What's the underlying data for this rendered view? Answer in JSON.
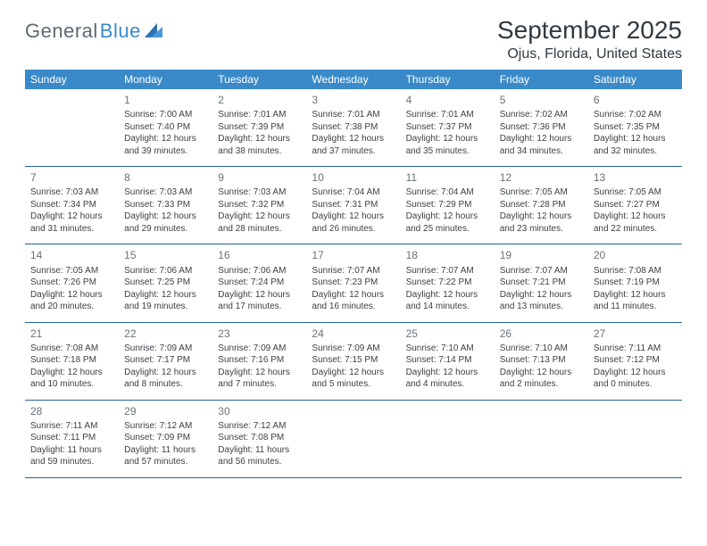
{
  "logo": {
    "text1": "General",
    "text2": "Blue"
  },
  "header": {
    "month_title": "September 2025",
    "location": "Ojus, Florida, United States"
  },
  "colors": {
    "header_bg": "#3a8ac9",
    "header_text": "#ffffff",
    "row_divider": "#2862a3",
    "daynum": "#6a7278",
    "body_text": "#3c4146",
    "title_text": "#303a40",
    "logo_gray": "#5f6a72",
    "logo_blue": "#3a8ac9"
  },
  "day_names": [
    "Sunday",
    "Monday",
    "Tuesday",
    "Wednesday",
    "Thursday",
    "Friday",
    "Saturday"
  ],
  "weeks": [
    [
      null,
      {
        "n": "1",
        "sr": "Sunrise: 7:00 AM",
        "ss": "Sunset: 7:40 PM",
        "d1": "Daylight: 12 hours",
        "d2": "and 39 minutes."
      },
      {
        "n": "2",
        "sr": "Sunrise: 7:01 AM",
        "ss": "Sunset: 7:39 PM",
        "d1": "Daylight: 12 hours",
        "d2": "and 38 minutes."
      },
      {
        "n": "3",
        "sr": "Sunrise: 7:01 AM",
        "ss": "Sunset: 7:38 PM",
        "d1": "Daylight: 12 hours",
        "d2": "and 37 minutes."
      },
      {
        "n": "4",
        "sr": "Sunrise: 7:01 AM",
        "ss": "Sunset: 7:37 PM",
        "d1": "Daylight: 12 hours",
        "d2": "and 35 minutes."
      },
      {
        "n": "5",
        "sr": "Sunrise: 7:02 AM",
        "ss": "Sunset: 7:36 PM",
        "d1": "Daylight: 12 hours",
        "d2": "and 34 minutes."
      },
      {
        "n": "6",
        "sr": "Sunrise: 7:02 AM",
        "ss": "Sunset: 7:35 PM",
        "d1": "Daylight: 12 hours",
        "d2": "and 32 minutes."
      }
    ],
    [
      {
        "n": "7",
        "sr": "Sunrise: 7:03 AM",
        "ss": "Sunset: 7:34 PM",
        "d1": "Daylight: 12 hours",
        "d2": "and 31 minutes."
      },
      {
        "n": "8",
        "sr": "Sunrise: 7:03 AM",
        "ss": "Sunset: 7:33 PM",
        "d1": "Daylight: 12 hours",
        "d2": "and 29 minutes."
      },
      {
        "n": "9",
        "sr": "Sunrise: 7:03 AM",
        "ss": "Sunset: 7:32 PM",
        "d1": "Daylight: 12 hours",
        "d2": "and 28 minutes."
      },
      {
        "n": "10",
        "sr": "Sunrise: 7:04 AM",
        "ss": "Sunset: 7:31 PM",
        "d1": "Daylight: 12 hours",
        "d2": "and 26 minutes."
      },
      {
        "n": "11",
        "sr": "Sunrise: 7:04 AM",
        "ss": "Sunset: 7:29 PM",
        "d1": "Daylight: 12 hours",
        "d2": "and 25 minutes."
      },
      {
        "n": "12",
        "sr": "Sunrise: 7:05 AM",
        "ss": "Sunset: 7:28 PM",
        "d1": "Daylight: 12 hours",
        "d2": "and 23 minutes."
      },
      {
        "n": "13",
        "sr": "Sunrise: 7:05 AM",
        "ss": "Sunset: 7:27 PM",
        "d1": "Daylight: 12 hours",
        "d2": "and 22 minutes."
      }
    ],
    [
      {
        "n": "14",
        "sr": "Sunrise: 7:05 AM",
        "ss": "Sunset: 7:26 PM",
        "d1": "Daylight: 12 hours",
        "d2": "and 20 minutes."
      },
      {
        "n": "15",
        "sr": "Sunrise: 7:06 AM",
        "ss": "Sunset: 7:25 PM",
        "d1": "Daylight: 12 hours",
        "d2": "and 19 minutes."
      },
      {
        "n": "16",
        "sr": "Sunrise: 7:06 AM",
        "ss": "Sunset: 7:24 PM",
        "d1": "Daylight: 12 hours",
        "d2": "and 17 minutes."
      },
      {
        "n": "17",
        "sr": "Sunrise: 7:07 AM",
        "ss": "Sunset: 7:23 PM",
        "d1": "Daylight: 12 hours",
        "d2": "and 16 minutes."
      },
      {
        "n": "18",
        "sr": "Sunrise: 7:07 AM",
        "ss": "Sunset: 7:22 PM",
        "d1": "Daylight: 12 hours",
        "d2": "and 14 minutes."
      },
      {
        "n": "19",
        "sr": "Sunrise: 7:07 AM",
        "ss": "Sunset: 7:21 PM",
        "d1": "Daylight: 12 hours",
        "d2": "and 13 minutes."
      },
      {
        "n": "20",
        "sr": "Sunrise: 7:08 AM",
        "ss": "Sunset: 7:19 PM",
        "d1": "Daylight: 12 hours",
        "d2": "and 11 minutes."
      }
    ],
    [
      {
        "n": "21",
        "sr": "Sunrise: 7:08 AM",
        "ss": "Sunset: 7:18 PM",
        "d1": "Daylight: 12 hours",
        "d2": "and 10 minutes."
      },
      {
        "n": "22",
        "sr": "Sunrise: 7:09 AM",
        "ss": "Sunset: 7:17 PM",
        "d1": "Daylight: 12 hours",
        "d2": "and 8 minutes."
      },
      {
        "n": "23",
        "sr": "Sunrise: 7:09 AM",
        "ss": "Sunset: 7:16 PM",
        "d1": "Daylight: 12 hours",
        "d2": "and 7 minutes."
      },
      {
        "n": "24",
        "sr": "Sunrise: 7:09 AM",
        "ss": "Sunset: 7:15 PM",
        "d1": "Daylight: 12 hours",
        "d2": "and 5 minutes."
      },
      {
        "n": "25",
        "sr": "Sunrise: 7:10 AM",
        "ss": "Sunset: 7:14 PM",
        "d1": "Daylight: 12 hours",
        "d2": "and 4 minutes."
      },
      {
        "n": "26",
        "sr": "Sunrise: 7:10 AM",
        "ss": "Sunset: 7:13 PM",
        "d1": "Daylight: 12 hours",
        "d2": "and 2 minutes."
      },
      {
        "n": "27",
        "sr": "Sunrise: 7:11 AM",
        "ss": "Sunset: 7:12 PM",
        "d1": "Daylight: 12 hours",
        "d2": "and 0 minutes."
      }
    ],
    [
      {
        "n": "28",
        "sr": "Sunrise: 7:11 AM",
        "ss": "Sunset: 7:11 PM",
        "d1": "Daylight: 11 hours",
        "d2": "and 59 minutes."
      },
      {
        "n": "29",
        "sr": "Sunrise: 7:12 AM",
        "ss": "Sunset: 7:09 PM",
        "d1": "Daylight: 11 hours",
        "d2": "and 57 minutes."
      },
      {
        "n": "30",
        "sr": "Sunrise: 7:12 AM",
        "ss": "Sunset: 7:08 PM",
        "d1": "Daylight: 11 hours",
        "d2": "and 56 minutes."
      },
      null,
      null,
      null,
      null
    ]
  ]
}
